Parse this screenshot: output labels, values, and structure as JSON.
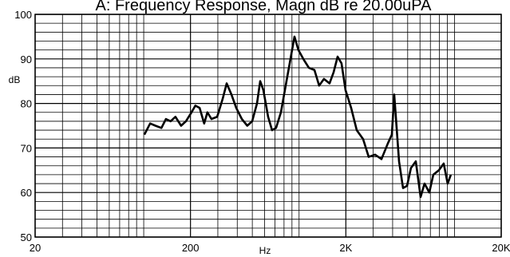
{
  "chart_data": {
    "type": "line",
    "title": "A: Frequency Response, Magn dB re 20.00uPA",
    "x_label": "Hz",
    "y_label": "dB",
    "log_x": true,
    "color": "#000000",
    "xlim": [
      20,
      20000
    ],
    "ylim": [
      50,
      100
    ],
    "xticks": [
      20,
      200,
      {
        "value": 2000,
        "label": "2K"
      },
      {
        "value": 20000,
        "label": "20K"
      }
    ],
    "yticks": [
      50,
      60,
      70,
      80,
      90,
      100
    ],
    "x_grid": [
      30,
      40,
      50,
      60,
      70,
      80,
      90,
      100,
      300,
      400,
      500,
      600,
      700,
      800,
      900,
      1000,
      3000,
      4000,
      5000,
      6000,
      7000,
      8000,
      9000,
      10000
    ],
    "y_grid": [
      52,
      54,
      56,
      58,
      62,
      64,
      66,
      68,
      72,
      74,
      76,
      78,
      82,
      84,
      86,
      88,
      92,
      94,
      96,
      98
    ],
    "x": [
      101,
      110,
      119,
      130,
      139,
      149,
      160,
      174,
      187,
      203,
      215,
      229,
      245,
      257,
      273,
      297,
      322,
      342,
      367,
      394,
      428,
      464,
      499,
      536,
      562,
      589,
      632,
      670,
      711,
      764,
      820,
      870,
      934,
      990,
      1064,
      1156,
      1256,
      1346,
      1446,
      1570,
      1668,
      1770,
      1876,
      1990,
      2163,
      2350,
      2582,
      2806,
      3085,
      3390,
      3725,
      3955,
      4096,
      4400,
      4667,
      4955,
      5250,
      5640,
      6055,
      6420,
      6890,
      7310,
      7940,
      8530,
      9040,
      9480
    ],
    "values": [
      73,
      75.5,
      75,
      74.5,
      76.5,
      76,
      77,
      75,
      76,
      78,
      79.5,
      79,
      75.5,
      78,
      76.5,
      77,
      81,
      84.5,
      82,
      79,
      76.5,
      75,
      76,
      80,
      85,
      83,
      77,
      74,
      74.5,
      78,
      84,
      89,
      95,
      92,
      90,
      88,
      87.5,
      84,
      85.5,
      84.5,
      87,
      90.5,
      89,
      83,
      79,
      74,
      72,
      68,
      68.5,
      67.5,
      71,
      73,
      82,
      67,
      61,
      61.5,
      65.5,
      67,
      59,
      62,
      60,
      64,
      65,
      66.5,
      62,
      64
    ]
  }
}
